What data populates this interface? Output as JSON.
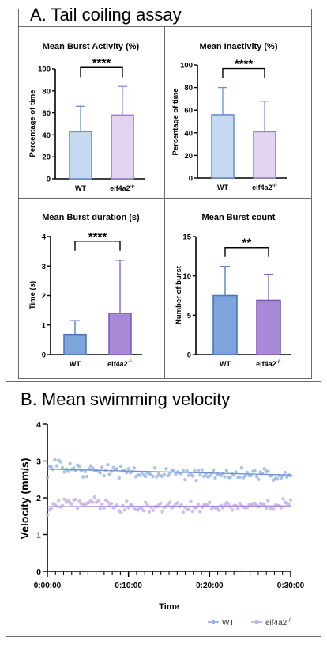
{
  "panel_a": {
    "title": "A. Tail coiling assay"
  },
  "panel_b": {
    "title": "B. Mean swimming velocity"
  },
  "chart_data": [
    {
      "id": "burst-activity",
      "type": "bar",
      "title": "Mean Burst Activity (%)",
      "ylabel": "Percentage of time",
      "ylim": [
        0,
        100
      ],
      "yticks": [
        "0",
        "20",
        "40",
        "60",
        "80",
        "100"
      ],
      "categories": [
        "WT",
        "eif4a2"
      ],
      "category_sup": [
        "",
        "-/-"
      ],
      "values": [
        43,
        58
      ],
      "errors": [
        23,
        26
      ],
      "colors": [
        "#c5d9f1",
        "#e2d4f2"
      ],
      "strokes": [
        "#6b8fd0",
        "#9d7fcf"
      ],
      "significance": "****"
    },
    {
      "id": "inactivity",
      "type": "bar",
      "title": "Mean Inactivity (%)",
      "ylabel": "Percentage of time",
      "ylim": [
        0,
        100
      ],
      "yticks": [
        "0",
        "20",
        "40",
        "60",
        "80",
        "100"
      ],
      "categories": [
        "WT",
        "eif4a2"
      ],
      "category_sup": [
        "",
        "-/-"
      ],
      "values": [
        56,
        41
      ],
      "errors": [
        24,
        27
      ],
      "colors": [
        "#c5d9f1",
        "#e2d4f2"
      ],
      "strokes": [
        "#6b8fd0",
        "#9d7fcf"
      ],
      "significance": "****"
    },
    {
      "id": "burst-duration",
      "type": "bar",
      "title": "Mean Burst duration (s)",
      "ylabel": "Time (s)",
      "ylim": [
        0,
        4
      ],
      "yticks": [
        "0",
        "1",
        "2",
        "3",
        "4"
      ],
      "categories": [
        "WT",
        "eif4a2"
      ],
      "category_sup": [
        "",
        "-/-"
      ],
      "values": [
        0.68,
        1.4
      ],
      "errors": [
        0.47,
        1.8
      ],
      "colors": [
        "#7ea4dc",
        "#a98ad8"
      ],
      "strokes": [
        "#4d76bd",
        "#7c5cba"
      ],
      "significance": "****"
    },
    {
      "id": "burst-count",
      "type": "bar",
      "title": "Mean Burst count",
      "ylabel": "Number of burst",
      "ylim": [
        0,
        15
      ],
      "yticks": [
        "0",
        "5",
        "10",
        "15"
      ],
      "categories": [
        "WT",
        "eif4a2"
      ],
      "category_sup": [
        "",
        "-/-"
      ],
      "values": [
        7.5,
        6.9
      ],
      "errors": [
        3.7,
        3.3
      ],
      "colors": [
        "#7ea4dc",
        "#a98ad8"
      ],
      "strokes": [
        "#4d76bd",
        "#7c5cba"
      ],
      "significance": "**"
    },
    {
      "id": "velocity",
      "type": "scatter",
      "ylabel": "Velocity (mm/s)",
      "xlabel": "Time",
      "ylim": [
        0,
        4
      ],
      "yticks": [
        "0",
        "1",
        "2",
        "3",
        "4"
      ],
      "xlim_minutes": [
        0,
        30
      ],
      "xticks": [
        "0:00:00",
        "0:10:00",
        "0:20:00",
        "0:30:00"
      ],
      "legend_position": "bottom-right",
      "series": [
        {
          "name": "WT",
          "name_sup": "",
          "color": "#94b4e3",
          "line_color": "#6f93cf",
          "trend": [
            2.78,
            2.62
          ],
          "points": [
            2.55,
            2.86,
            2.84,
            2.77,
            3.03,
            2.87,
            3.02,
            2.98,
            2.82,
            2.7,
            2.78,
            2.72,
            2.93,
            2.77,
            2.81,
            2.73,
            2.89,
            2.86,
            2.74,
            2.57,
            2.71,
            2.58,
            2.79,
            2.87,
            2.81,
            2.74,
            2.74,
            2.72,
            2.68,
            2.83,
            2.6,
            2.74,
            2.9,
            2.63,
            2.72,
            2.82,
            2.77,
            2.79,
            2.54,
            2.86,
            2.73,
            2.73,
            2.68,
            2.79,
            2.68,
            2.71,
            2.81,
            2.57,
            2.62,
            2.61,
            2.69,
            2.62,
            2.58,
            2.67,
            2.66,
            2.63,
            2.58,
            2.81,
            2.57,
            2.65,
            2.6,
            2.58,
            2.63,
            2.79,
            2.6,
            2.66,
            2.75,
            2.74,
            2.64,
            2.7,
            2.67,
            2.66,
            2.74,
            2.49,
            2.73,
            2.61,
            2.65,
            2.59,
            2.74,
            2.47,
            2.75,
            2.62,
            2.76,
            2.58,
            2.65,
            2.57,
            2.59,
            2.66,
            2.75,
            2.54,
            2.65,
            2.63,
            2.6,
            2.66,
            2.57,
            2.74,
            2.56,
            2.55,
            2.64,
            2.62,
            2.7,
            2.56,
            2.56,
            2.82,
            2.55,
            2.6,
            2.69,
            2.6,
            2.61,
            2.72,
            2.73,
            2.58,
            2.5,
            2.7,
            2.66,
            2.79,
            2.72,
            2.72,
            2.59,
            2.6,
            2.48,
            2.53,
            2.51,
            2.6,
            2.54,
            2.6,
            2.69,
            2.56,
            2.62,
            2.6
          ]
        },
        {
          "name": "eif4a2",
          "name_sup": "-/-",
          "color": "#c7aee6",
          "line_color": "#a98ad8",
          "trend": [
            1.76,
            1.78
          ],
          "points": [
            1.53,
            1.67,
            1.71,
            1.84,
            1.83,
            1.77,
            1.93,
            1.75,
            1.79,
            1.96,
            1.88,
            1.92,
            1.86,
            1.83,
            1.94,
            1.96,
            1.71,
            1.91,
            1.84,
            1.83,
            1.78,
            1.85,
            1.87,
            1.92,
            1.88,
            2.02,
            1.88,
            1.92,
            1.71,
            1.83,
            1.71,
            1.94,
            1.89,
            1.81,
            1.85,
            1.73,
            1.77,
            1.81,
            1.65,
            1.6,
            1.79,
            1.67,
            1.91,
            1.73,
            1.82,
            1.8,
            1.71,
            1.68,
            1.67,
            1.73,
            1.71,
            1.65,
            1.88,
            1.81,
            1.62,
            1.75,
            1.66,
            1.76,
            1.76,
            1.8,
            1.85,
            1.62,
            1.74,
            1.77,
            1.82,
            1.88,
            1.73,
            1.77,
            1.84,
            1.86,
            1.76,
            1.81,
            1.6,
            1.74,
            1.68,
            1.68,
            1.9,
            1.63,
            1.73,
            1.73,
            1.83,
            1.62,
            1.74,
            1.81,
            1.81,
            1.8,
            1.88,
            1.69,
            1.74,
            1.73,
            1.72,
            1.66,
            1.79,
            1.73,
            1.82,
            1.87,
            1.84,
            1.76,
            1.67,
            1.79,
            1.79,
            1.7,
            1.85,
            1.79,
            1.75,
            1.73,
            1.74,
            1.82,
            1.81,
            1.84,
            1.85,
            1.8,
            1.76,
            1.85,
            1.84,
            1.83,
            1.72,
            1.92,
            1.7,
            1.73,
            1.69,
            1.81,
            1.79,
            1.78,
            1.73,
            1.97,
            1.88,
            1.85,
            1.83,
            1.94
          ]
        }
      ]
    }
  ]
}
